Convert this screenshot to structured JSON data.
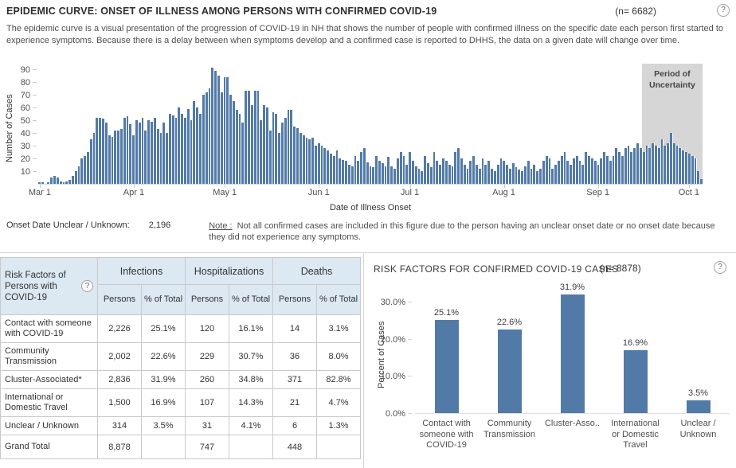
{
  "icons": {
    "help": "?"
  },
  "colors": {
    "bar_blue": "#527aa6",
    "uncertainty_band": "#d6d6d6",
    "table_header_bg": "#dce8f2"
  },
  "epi": {
    "title": "EPIDEMIC CURVE: ONSET OF ILLNESS AMONG PERSONS WITH CONFIRMED COVID-19",
    "n_label": "(n= 6682)",
    "description": "The epidemic curve is a visual presentation of the progression of COVID-19 in NH that shows the number of people with confirmed illness on the specific date each person first started to experience symptoms. Because there is a delay between when symptoms develop and a confirmed case is reported to DHHS, the data on a given date will change over time.",
    "onset_unclear_label": "Onset Date Unclear / Unknown:",
    "onset_unclear_value": "2,196",
    "note_label": "Note :",
    "note_text": "Not all confirmed cases are included in this figure due to the person having an unclear onset date or no onset date because they did not experience any symptoms."
  },
  "risk_chart_header": {
    "title": "RISK FACTORS FOR CONFIRMED COVID-19 CASES",
    "n_label": "(n= 8878)"
  },
  "risk_table": {
    "corner_header": "Risk Factors of Persons with COVID-19",
    "group_headers": [
      "Infections",
      "Hospitalizations",
      "Deaths"
    ],
    "sub_headers": [
      "Persons",
      "% of Total"
    ],
    "rows": [
      {
        "label": "Contact with someone with COVID-19",
        "values": [
          "2,226",
          "25.1%",
          "120",
          "16.1%",
          "14",
          "3.1%"
        ]
      },
      {
        "label": "Community Transmission",
        "values": [
          "2,002",
          "22.6%",
          "229",
          "30.7%",
          "36",
          "8.0%"
        ]
      },
      {
        "label": "Cluster-Associated*",
        "values": [
          "2,836",
          "31.9%",
          "260",
          "34.8%",
          "371",
          "82.8%"
        ]
      },
      {
        "label": "International or Domestic Travel",
        "values": [
          "1,500",
          "16.9%",
          "107",
          "14.3%",
          "21",
          "4.7%"
        ]
      },
      {
        "label": "Unclear / Unknown",
        "values": [
          "314",
          "3.5%",
          "31",
          "4.1%",
          "6",
          "1.3%"
        ]
      },
      {
        "label": "Grand Total",
        "values": [
          "8,878",
          "",
          "747",
          "",
          "448",
          ""
        ],
        "is_total": true
      }
    ]
  },
  "chart_data": [
    {
      "type": "bar",
      "title": "EPIDEMIC CURVE: ONSET OF ILLNESS AMONG PERSONS WITH CONFIRMED COVID-19",
      "n_total": 6682,
      "xlabel": "Date of Illness Onset",
      "ylabel": "Number of Cases",
      "ylim": [
        0,
        95
      ],
      "yticks": [
        10,
        20,
        30,
        40,
        50,
        60,
        70,
        80,
        90
      ],
      "grid": "off",
      "legend": "none",
      "n_days": 219,
      "x_ticks": [
        {
          "label": "Mar 1",
          "day": 0
        },
        {
          "label": "Apr 1",
          "day": 31
        },
        {
          "label": "May 1",
          "day": 61
        },
        {
          "label": "Jun 1",
          "day": 92
        },
        {
          "label": "Jul 1",
          "day": 122
        },
        {
          "label": "Aug 1",
          "day": 153
        },
        {
          "label": "Sep 1",
          "day": 184
        },
        {
          "label": "Oct 1",
          "day": 214
        }
      ],
      "values": [
        1,
        1,
        0,
        1,
        5,
        6,
        5,
        2,
        1,
        2,
        3,
        6,
        10,
        14,
        20,
        22,
        25,
        35,
        40,
        52,
        52,
        51,
        48,
        38,
        37,
        42,
        42,
        43,
        52,
        53,
        47,
        38,
        50,
        48,
        52,
        42,
        50,
        49,
        52,
        43,
        40,
        48,
        40,
        55,
        54,
        52,
        60,
        55,
        52,
        59,
        50,
        65,
        60,
        55,
        70,
        72,
        75,
        91,
        89,
        85,
        72,
        84,
        84,
        70,
        65,
        58,
        55,
        48,
        73,
        73,
        62,
        73,
        73,
        50,
        62,
        60,
        42,
        56,
        55,
        40,
        48,
        52,
        58,
        58,
        45,
        44,
        40,
        38,
        36,
        35,
        36,
        30,
        32,
        30,
        28,
        26,
        24,
        22,
        26,
        20,
        19,
        18,
        15,
        14,
        22,
        18,
        25,
        28,
        17,
        14,
        13,
        22,
        18,
        16,
        14,
        21,
        14,
        12,
        20,
        25,
        22,
        15,
        25,
        18,
        14,
        12,
        10,
        22,
        16,
        13,
        25,
        18,
        15,
        20,
        18,
        15,
        14,
        25,
        28,
        20,
        15,
        12,
        18,
        22,
        15,
        12,
        20,
        15,
        18,
        12,
        10,
        15,
        20,
        18,
        15,
        12,
        16,
        13,
        11,
        10,
        14,
        18,
        12,
        15,
        10,
        12,
        18,
        22,
        20,
        12,
        15,
        18,
        22,
        25,
        18,
        15,
        20,
        22,
        18,
        15,
        25,
        22,
        20,
        18,
        15,
        20,
        25,
        22,
        18,
        22,
        28,
        25,
        22,
        28,
        30,
        25,
        28,
        32,
        28,
        25,
        30,
        28,
        32,
        30,
        28,
        35,
        30,
        32,
        40,
        32,
        30,
        28,
        26,
        25,
        24,
        22,
        20,
        10,
        4
      ],
      "annotation": {
        "label": "Period of Uncertainty",
        "start_day": 199,
        "end_day": 218
      }
    },
    {
      "type": "bar",
      "title": "RISK FACTORS FOR CONFIRMED COVID-19 CASES",
      "n_total": 8878,
      "xlabel": "",
      "ylabel": "Percent of Cases",
      "ylim": [
        0,
        33.5
      ],
      "ytick_values": [
        0,
        10,
        20,
        30
      ],
      "ytick_labels": [
        "0.0%",
        "10.0%",
        "20.0%",
        "30.0%"
      ],
      "grid": "off",
      "legend": "none",
      "categories": [
        "Contact with someone with COVID-19",
        "Community Transmission",
        "Cluster-Asso..",
        "International or Domestic Travel",
        "Unclear / Unknown"
      ],
      "values": [
        25.1,
        22.6,
        31.9,
        16.9,
        3.5
      ],
      "value_labels": [
        "25.1%",
        "22.6%",
        "31.9%",
        "16.9%",
        "3.5%"
      ]
    }
  ]
}
